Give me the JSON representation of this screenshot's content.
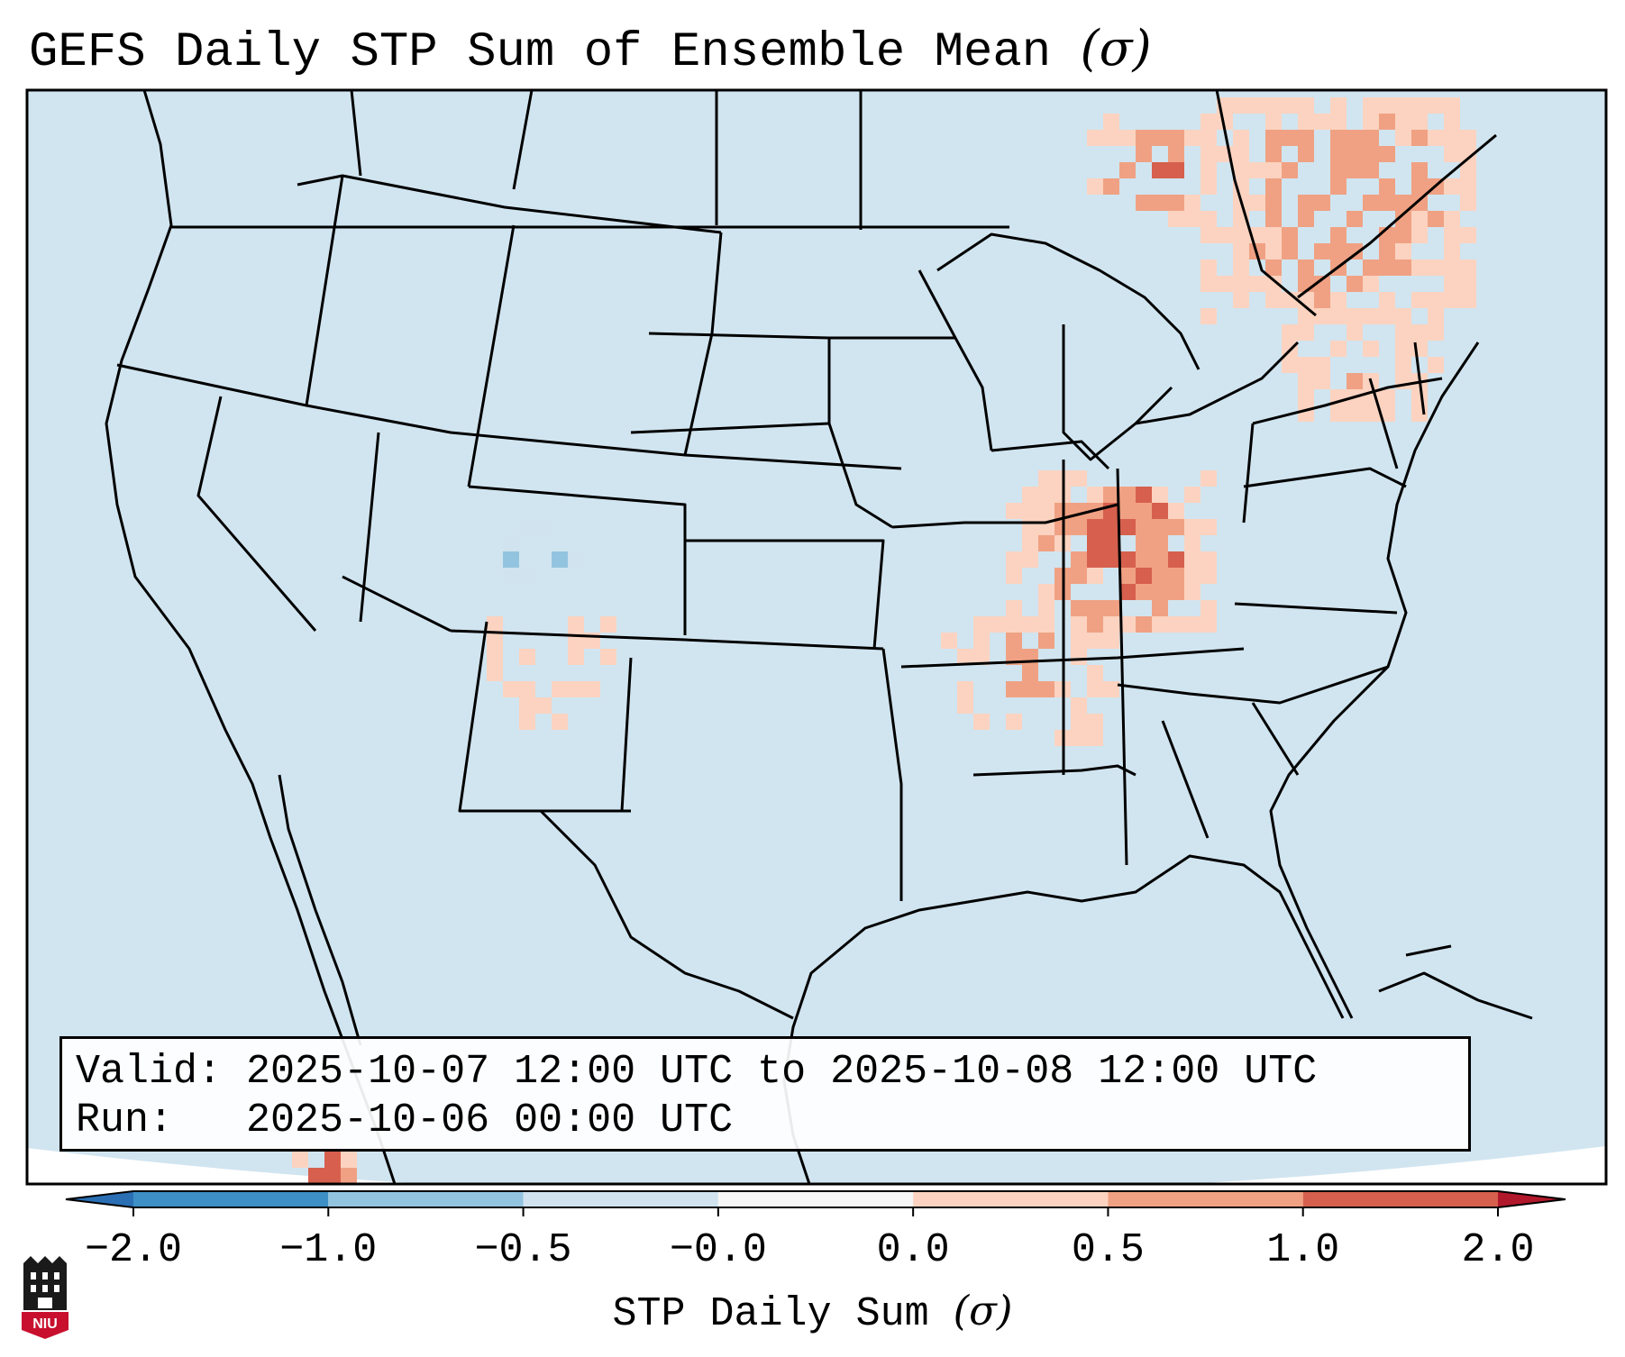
{
  "title": "GEFS Daily STP Sum of Ensemble Mean",
  "title_symbol": "(σ)",
  "info": {
    "valid_label": "Valid:",
    "valid_value": "2025-10-07 12:00 UTC to 2025-10-08 12:00 UTC",
    "run_label": "Run:",
    "run_value": "2025-10-06 00:00 UTC"
  },
  "colorbar": {
    "label": "STP Daily Sum",
    "label_symbol": "(σ)",
    "ticks": [
      "−2.0",
      "−1.0",
      "−0.5",
      "−0.0",
      "0.0",
      "0.5",
      "1.0",
      "2.0"
    ],
    "colors": [
      "#3d8fc6",
      "#93c4df",
      "#d0e3ef",
      "#f6f6f6",
      "#fbd3c0",
      "#f0a183",
      "#d6604d"
    ],
    "under_color": "#2a6fb3",
    "over_color": "#b2182b"
  },
  "map": {
    "background_color": "#d1e5f0",
    "hotspots": [
      {
        "name": "ohio-valley",
        "level": 2.0
      },
      {
        "name": "kentucky-indiana",
        "level": 1.5
      },
      {
        "name": "tennessee",
        "level": 0.8
      },
      {
        "name": "quebec",
        "level": 1.5
      },
      {
        "name": "ontario",
        "level": 1.5
      },
      {
        "name": "new-york",
        "level": 0.6
      },
      {
        "name": "new-mexico",
        "level": 0.5
      },
      {
        "name": "mexico",
        "level": 1.5
      },
      {
        "name": "colorado",
        "level": -0.8
      }
    ]
  },
  "logo_text": "NIU"
}
